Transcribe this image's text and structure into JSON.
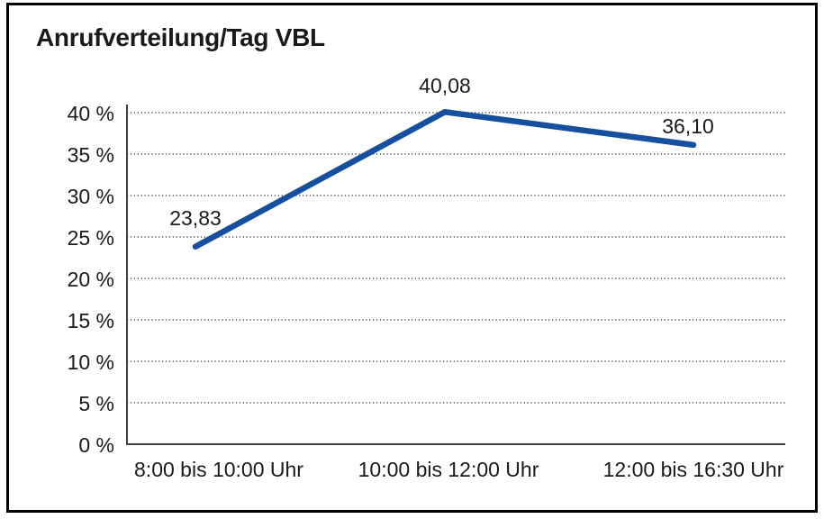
{
  "chart_data": {
    "type": "line",
    "title": "Anrufverteilung/Tag VBL",
    "categories": [
      "8:00 bis 10:00 Uhr",
      "10:00 bis 12:00 Uhr",
      "12:00 bis 16:30 Uhr"
    ],
    "values": [
      23.83,
      40.08,
      36.1
    ],
    "point_labels": [
      "23,83",
      "40,08",
      "36,10"
    ],
    "ylim": [
      0,
      40
    ],
    "ytick_values": [
      0,
      5,
      10,
      15,
      20,
      25,
      30,
      35,
      40
    ],
    "ytick_labels": [
      "0 %",
      "5 %",
      "10 %",
      "15 %",
      "20 %",
      "25 %",
      "30 %",
      "35 %",
      "40 %"
    ],
    "xlabel": "",
    "ylabel": "",
    "grid": "dotted-horizontal",
    "legend": "none",
    "colors": {
      "line": "#164f9e",
      "text": "#1a1a1a",
      "axis": "#404040",
      "grid": "#595959",
      "frame": "#000000",
      "background": "#ffffff"
    }
  }
}
